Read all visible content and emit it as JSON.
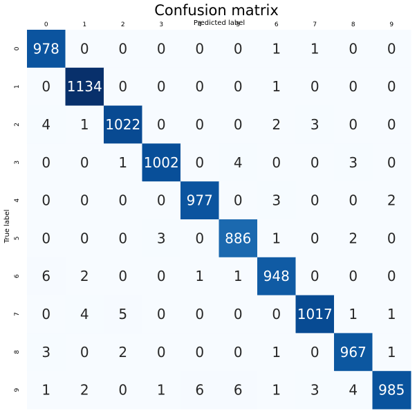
{
  "chart_data": {
    "type": "heatmap",
    "title": "Confusion matrix",
    "xlabel": "Predicted label",
    "ylabel": "True label",
    "x_tick_position": "top",
    "colormap": "Blues",
    "colorbar": false,
    "x_categories": [
      "0",
      "1",
      "2",
      "3",
      "4",
      "5",
      "6",
      "7",
      "8",
      "9"
    ],
    "y_categories": [
      "0",
      "1",
      "2",
      "3",
      "4",
      "5",
      "6",
      "7",
      "8",
      "9"
    ],
    "values": [
      [
        978,
        0,
        0,
        0,
        0,
        0,
        1,
        1,
        0,
        0
      ],
      [
        0,
        1134,
        0,
        0,
        0,
        0,
        1,
        0,
        0,
        0
      ],
      [
        4,
        1,
        1022,
        0,
        0,
        0,
        2,
        3,
        0,
        0
      ],
      [
        0,
        0,
        1,
        1002,
        0,
        4,
        0,
        0,
        3,
        0
      ],
      [
        0,
        0,
        0,
        0,
        977,
        0,
        3,
        0,
        0,
        2
      ],
      [
        0,
        0,
        0,
        3,
        0,
        886,
        1,
        0,
        2,
        0
      ],
      [
        6,
        2,
        0,
        0,
        1,
        1,
        948,
        0,
        0,
        0
      ],
      [
        0,
        4,
        5,
        0,
        0,
        0,
        0,
        1017,
        1,
        1
      ],
      [
        3,
        0,
        2,
        0,
        0,
        0,
        1,
        0,
        967,
        1
      ],
      [
        1,
        2,
        0,
        1,
        6,
        6,
        1,
        3,
        4,
        985
      ]
    ]
  }
}
